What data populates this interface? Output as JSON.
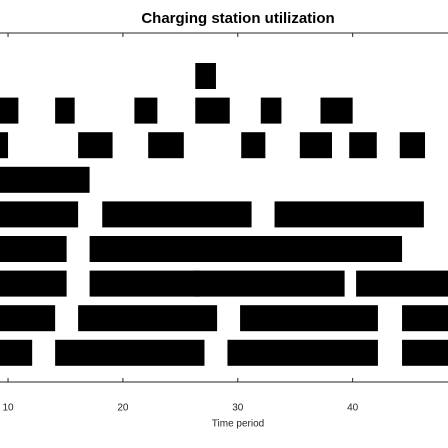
{
  "chart_data": {
    "type": "broken_barh",
    "title": "Charging station utilization",
    "xlabel": "Time period",
    "xlim": [
      9.3,
      48.3
    ],
    "xticks": [
      10,
      20,
      30,
      40
    ],
    "color": "#000000",
    "rows": [
      {
        "segments": [
          [
            26.3,
            1.8
          ]
        ]
      },
      {
        "segments": [
          [
            9.3,
            1.6
          ],
          [
            14.1,
            1.7
          ],
          [
            21,
            2
          ],
          [
            26.3,
            3
          ],
          [
            32,
            1.8
          ],
          [
            37.2,
            2.8
          ]
        ]
      },
      {
        "segments": [
          [
            9.3,
            0.7
          ],
          [
            16.1,
            3
          ],
          [
            22.2,
            3.1
          ],
          [
            30.3,
            2.1
          ],
          [
            35.4,
            2.8
          ],
          [
            39.7,
            2.4
          ],
          [
            44.1,
            2.2
          ]
        ]
      },
      {
        "segments": [
          [
            9.3,
            7.8
          ]
        ]
      },
      {
        "segments": [
          [
            9.3,
            6.8
          ],
          [
            18.2,
            13
          ],
          [
            33.2,
            13
          ]
        ]
      },
      {
        "segments": [
          [
            9.3,
            5.8
          ],
          [
            17.1,
            9.6
          ],
          [
            26.2,
            7
          ],
          [
            33.1,
            11.2
          ]
        ]
      },
      {
        "segments": [
          [
            9.3,
            5.8
          ],
          [
            17.1,
            9.6
          ],
          [
            26.2,
            13.1
          ],
          [
            40.3,
            8
          ]
        ]
      },
      {
        "segments": [
          [
            9.3,
            4.8
          ],
          [
            16.1,
            12.1
          ],
          [
            30.2,
            12
          ],
          [
            44.3,
            4
          ]
        ]
      },
      {
        "segments": [
          [
            9.3,
            2.8
          ],
          [
            14.1,
            13
          ],
          [
            29.1,
            13.1
          ],
          [
            44.3,
            4
          ]
        ]
      }
    ]
  }
}
